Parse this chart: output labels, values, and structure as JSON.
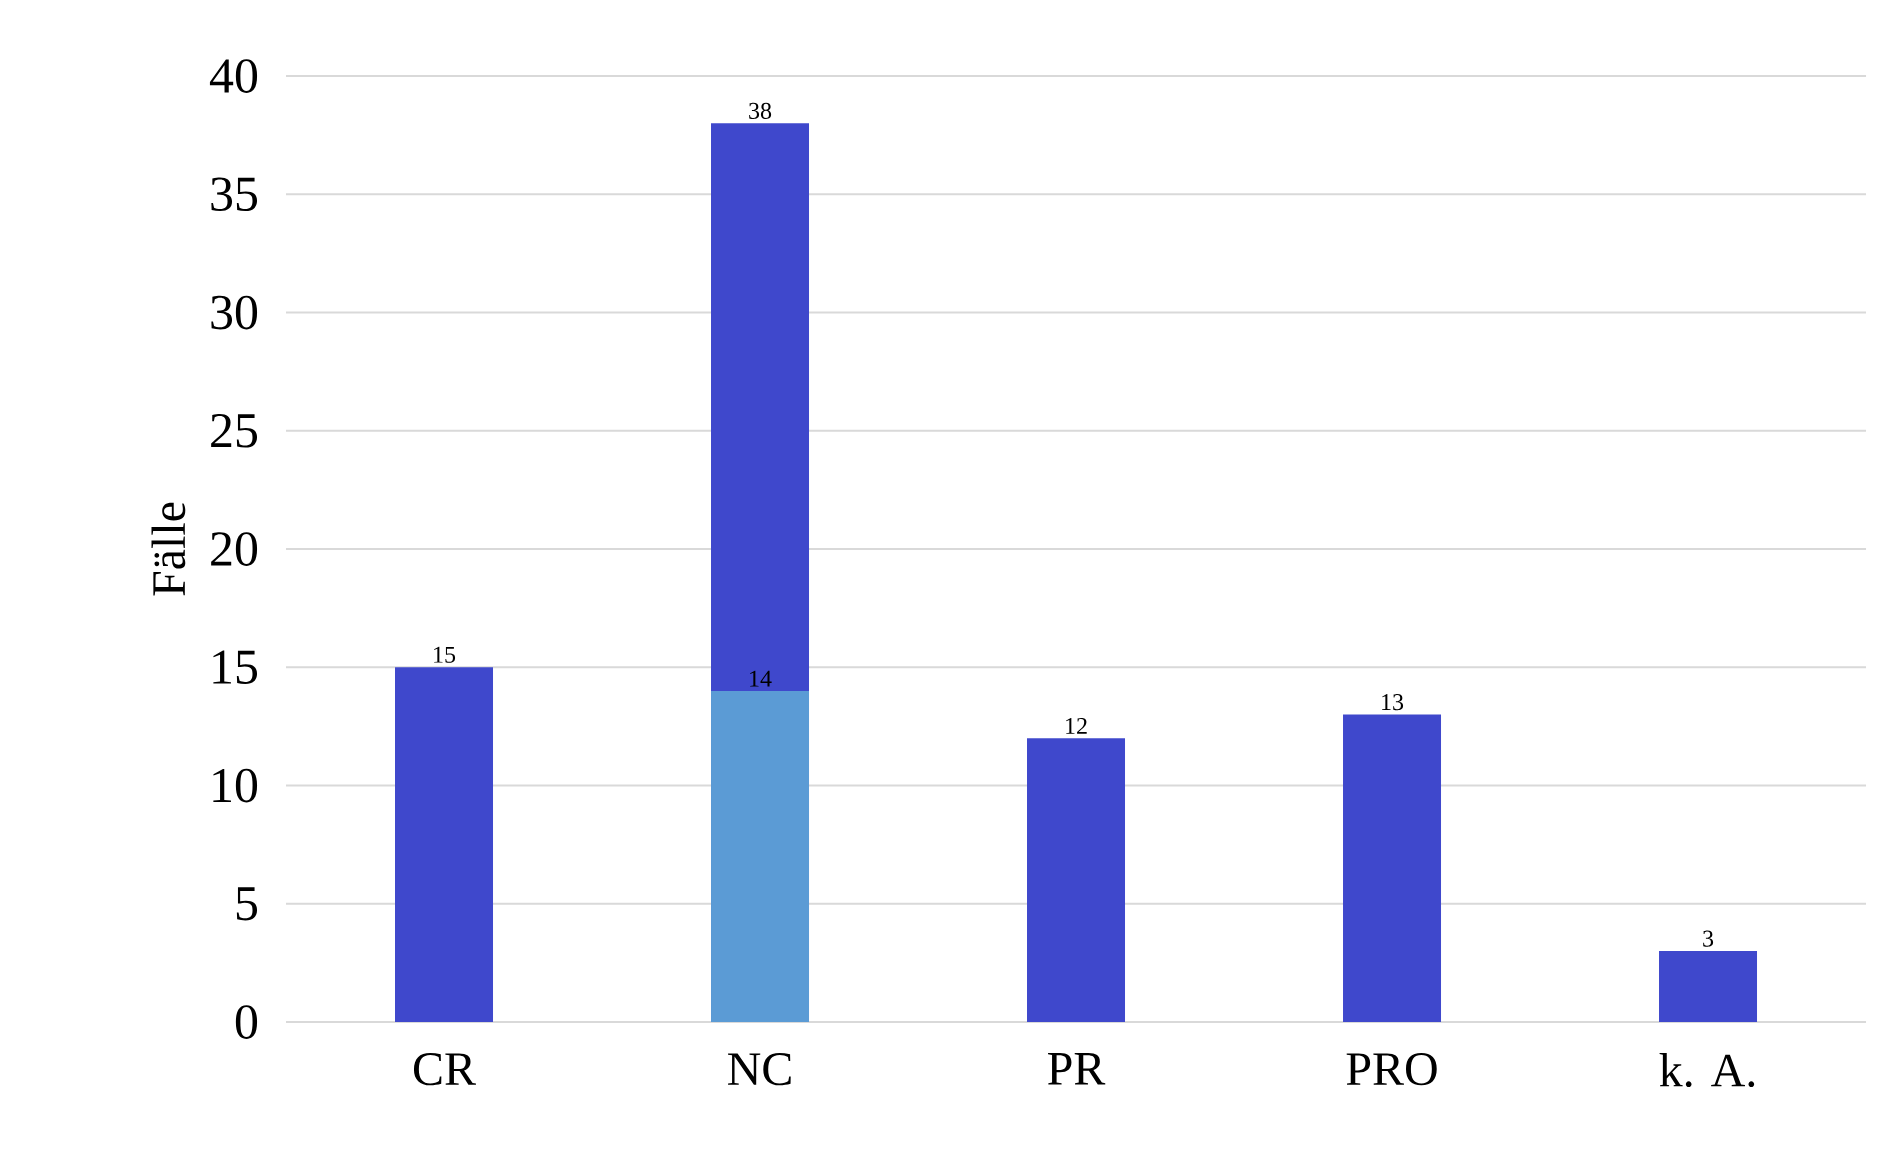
{
  "chart_data": {
    "type": "bar",
    "ylabel": "Fälle",
    "categories": [
      "CR",
      "NC",
      "PR",
      "PRO",
      "k. A."
    ],
    "series": [
      {
        "color": "#3f48cc",
        "values": [
          15,
          38,
          12,
          13,
          3
        ]
      },
      {
        "color": "#5b9bd5",
        "values": [
          null,
          14,
          null,
          null,
          null
        ]
      }
    ],
    "ylim": [
      0,
      40
    ],
    "yticks": [
      0,
      5,
      10,
      15,
      20,
      25,
      30,
      35,
      40
    ],
    "grid": "y",
    "data_labels": true
  }
}
